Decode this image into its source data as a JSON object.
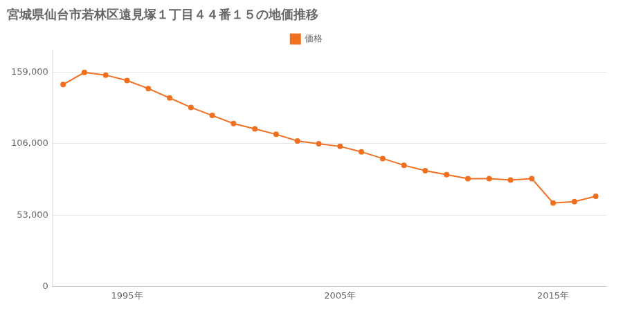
{
  "chart_data": {
    "type": "line",
    "title": "宮城県仙台市若林区遠見塚１丁目４４番１５の地価推移",
    "x": [
      1992,
      1993,
      1994,
      1995,
      1996,
      1997,
      1998,
      1999,
      2000,
      2001,
      2002,
      2003,
      2004,
      2005,
      2006,
      2007,
      2008,
      2009,
      2010,
      2011,
      2012,
      2013,
      2014,
      2015,
      2016,
      2017
    ],
    "series": [
      {
        "name": "価格",
        "color": "#f07020",
        "marker": "circle",
        "values": [
          150000,
          159000,
          157000,
          153000,
          147000,
          140000,
          133000,
          127000,
          121000,
          117000,
          113000,
          108000,
          106000,
          104000,
          100000,
          95000,
          90000,
          86000,
          83000,
          80000,
          80000,
          79000,
          80000,
          62000,
          63000,
          67000
        ]
      }
    ],
    "xlim": [
      1991.5,
      2017.5
    ],
    "xticks": [
      {
        "value": 1995,
        "label": "1995年"
      },
      {
        "value": 2005,
        "label": "2005年"
      },
      {
        "value": 2015,
        "label": "2015年"
      }
    ],
    "ylim": [
      0,
      175000
    ],
    "yticks": [
      0,
      {
        "value": 53000,
        "label": "53,000"
      },
      {
        "value": 106000,
        "label": "106,000"
      },
      {
        "value": 159000,
        "label": "159,000"
      }
    ],
    "grid": "y",
    "legend": "top"
  }
}
